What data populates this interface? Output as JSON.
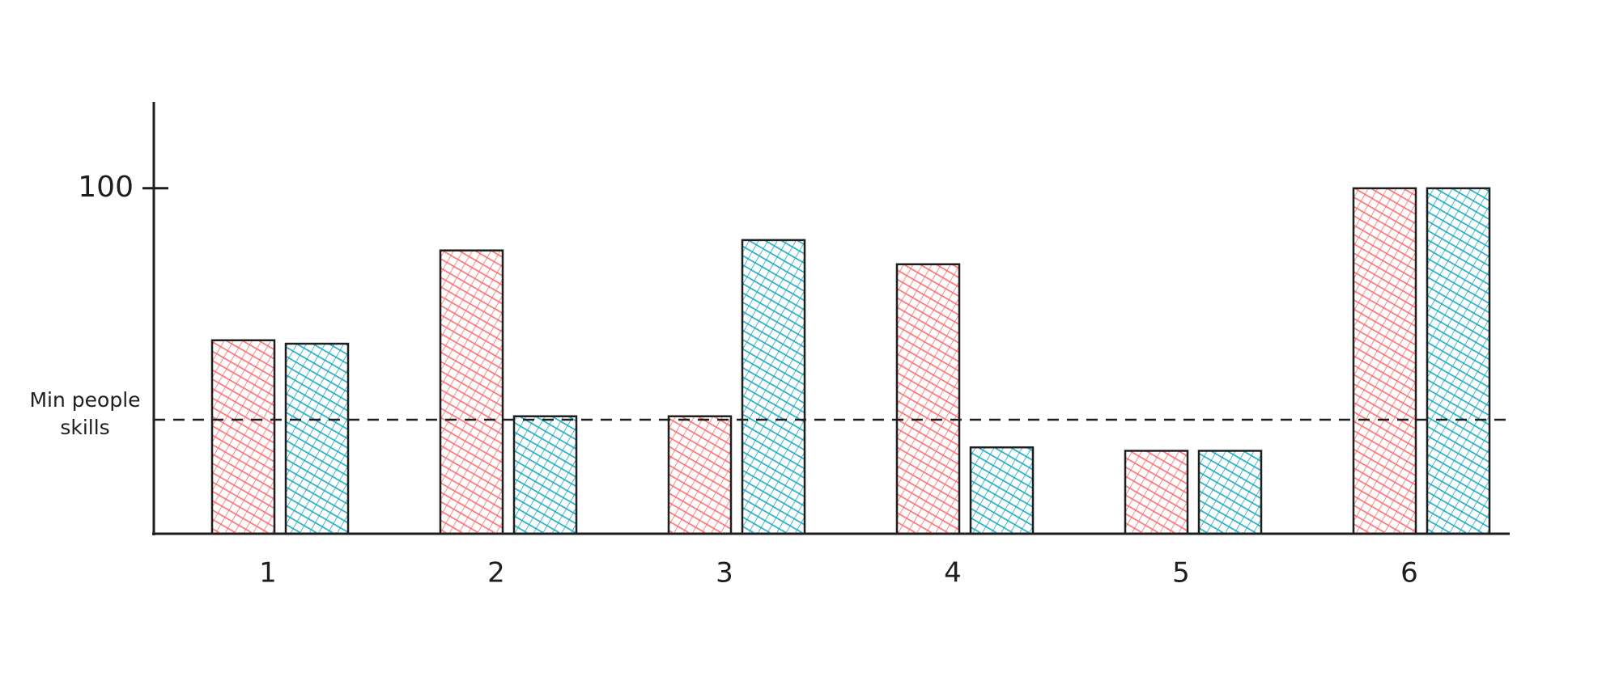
{
  "chart_data": {
    "type": "bar",
    "categories": [
      "1",
      "2",
      "3",
      "4",
      "5",
      "6"
    ],
    "series": [
      {
        "color": "#ff6b6b",
        "values": [
          56,
          82,
          34,
          78,
          24,
          100
        ]
      },
      {
        "color": "#15aabf",
        "values": [
          55,
          34,
          85,
          25,
          24,
          100
        ]
      }
    ],
    "ylim": [
      0,
      125
    ],
    "yticks": [
      100
    ],
    "reference_line": {
      "value": 33,
      "label": "Min people skills"
    }
  }
}
